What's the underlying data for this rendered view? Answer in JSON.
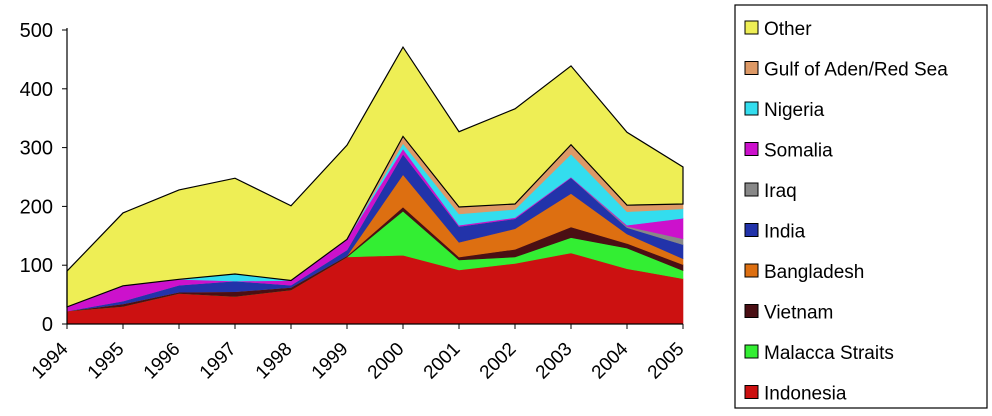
{
  "chart_data": {
    "type": "area",
    "stacked": true,
    "categories": [
      "1994",
      "1995",
      "1996",
      "1997",
      "1998",
      "1999",
      "2000",
      "2001",
      "2002",
      "2003",
      "2004",
      "2005"
    ],
    "y_ticks": [
      "0",
      "100",
      "200",
      "300",
      "400",
      "500"
    ],
    "ylim": [
      0,
      500
    ],
    "grid": false,
    "legend_position": "right",
    "series": [
      {
        "name": "Indonesia",
        "color": "#cc1111",
        "values": [
          22,
          30,
          52,
          47,
          58,
          114,
          117,
          92,
          103,
          121,
          94,
          77
        ]
      },
      {
        "name": "Malacca Straits",
        "color": "#33ee33",
        "values": [
          0,
          0,
          0,
          0,
          0,
          0,
          75,
          17,
          11,
          26,
          35,
          14
        ]
      },
      {
        "name": "Vietnam",
        "color": "#4a0f14",
        "values": [
          0,
          4,
          2,
          8,
          4,
          2,
          7,
          5,
          13,
          18,
          8,
          10
        ]
      },
      {
        "name": "Bangladesh",
        "color": "#dd6f11",
        "values": [
          0,
          0,
          0,
          0,
          0,
          0,
          55,
          25,
          35,
          57,
          16,
          10
        ]
      },
      {
        "name": "India",
        "color": "#2233aa",
        "values": [
          0,
          5,
          12,
          18,
          4,
          10,
          35,
          27,
          17,
          27,
          11,
          24
        ]
      },
      {
        "name": "Iraq",
        "color": "#888888",
        "values": [
          0,
          0,
          0,
          0,
          0,
          0,
          0,
          0,
          0,
          0,
          2,
          10
        ]
      },
      {
        "name": "Somalia",
        "color": "#cc11cc",
        "values": [
          7,
          26,
          10,
          0,
          8,
          18,
          9,
          2,
          2,
          1,
          2,
          35
        ]
      },
      {
        "name": "Nigeria",
        "color": "#33ddee",
        "values": [
          0,
          0,
          0,
          12,
          0,
          0,
          9,
          19,
          14,
          39,
          23,
          16
        ]
      },
      {
        "name": "Gulf of Aden/Red Sea",
        "color": "#dd9966",
        "values": [
          0,
          0,
          0,
          0,
          0,
          0,
          12,
          12,
          9,
          16,
          11,
          8
        ]
      },
      {
        "name": "Other",
        "color": "#eeee55",
        "values": [
          61,
          124,
          152,
          163,
          127,
          160,
          152,
          128,
          162,
          134,
          124,
          63
        ]
      }
    ]
  }
}
